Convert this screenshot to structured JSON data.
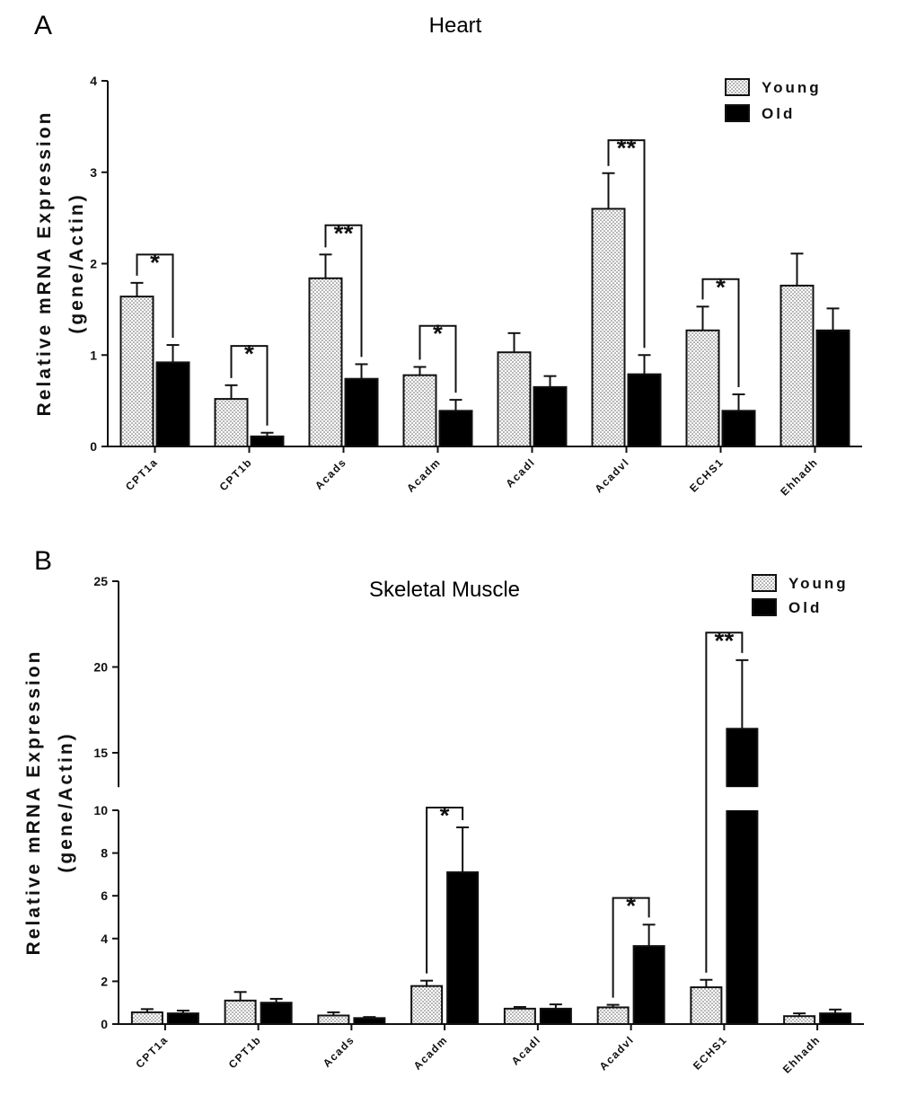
{
  "chart_data": [
    {
      "type": "bar",
      "panel_label": "A",
      "title": "Heart",
      "ylabel_line1": "Relative mRNA Expression",
      "ylabel_line2": "(gene/Actin)",
      "ylim": [
        0,
        4
      ],
      "yticks": [
        0,
        1,
        2,
        3,
        4
      ],
      "categories": [
        "CPT1a",
        "CPT1b",
        "Acads",
        "Acadm",
        "Acadl",
        "Acadvl",
        "ECHS1",
        "Ehhadh"
      ],
      "series": [
        {
          "name": "Young",
          "values": [
            1.64,
            0.52,
            1.84,
            0.78,
            1.03,
            2.6,
            1.27,
            1.76
          ],
          "errors": [
            0.15,
            0.15,
            0.26,
            0.09,
            0.21,
            0.39,
            0.26,
            0.35
          ]
        },
        {
          "name": "Old",
          "values": [
            0.92,
            0.11,
            0.74,
            0.39,
            0.65,
            0.79,
            0.39,
            1.27
          ],
          "errors": [
            0.19,
            0.04,
            0.16,
            0.12,
            0.12,
            0.21,
            0.18,
            0.24
          ]
        }
      ],
      "significance": [
        {
          "category": "CPT1a",
          "label": "*",
          "level": 2.1
        },
        {
          "category": "CPT1b",
          "label": "*",
          "level": 1.1
        },
        {
          "category": "Acads",
          "label": "**",
          "level": 2.42
        },
        {
          "category": "Acadm",
          "label": "*",
          "level": 1.32
        },
        {
          "category": "Acadvl",
          "label": "**",
          "level": 3.35
        },
        {
          "category": "ECHS1",
          "label": "*",
          "level": 1.83
        }
      ],
      "legend": [
        "Young",
        "Old"
      ],
      "legend_position": "top-right"
    },
    {
      "type": "bar",
      "panel_label": "B",
      "title": "Skeletal Muscle",
      "ylabel_line1": "Relative mRNA Expression",
      "ylabel_line2": "(gene/Actin)",
      "ylim": [
        0,
        25
      ],
      "axis_break": [
        10,
        13
      ],
      "yticks": [
        0,
        2,
        4,
        6,
        8,
        10,
        15,
        20,
        25
      ],
      "categories": [
        "CPT1a",
        "CPT1b",
        "Acads",
        "Acadm",
        "Acadl",
        "Acadvl",
        "ECHS1",
        "Ehhadh"
      ],
      "series": [
        {
          "name": "Young",
          "values": [
            0.55,
            1.1,
            0.4,
            1.78,
            0.72,
            0.78,
            1.72,
            0.37
          ],
          "errors": [
            0.15,
            0.4,
            0.15,
            0.25,
            0.08,
            0.12,
            0.35,
            0.13
          ]
        },
        {
          "name": "Old",
          "values": [
            0.5,
            1.0,
            0.28,
            7.1,
            0.72,
            3.65,
            16.4,
            0.5
          ],
          "errors": [
            0.13,
            0.18,
            0.05,
            2.1,
            0.2,
            1.0,
            4.0,
            0.18
          ]
        }
      ],
      "significance": [
        {
          "category": "Acadm",
          "label": "*",
          "level": 10.5
        },
        {
          "category": "Acadvl",
          "label": "*",
          "level": 5.9
        },
        {
          "category": "ECHS1",
          "label": "**",
          "level": 22.0
        }
      ],
      "legend": [
        "Young",
        "Old"
      ],
      "legend_position": "top-right"
    }
  ]
}
